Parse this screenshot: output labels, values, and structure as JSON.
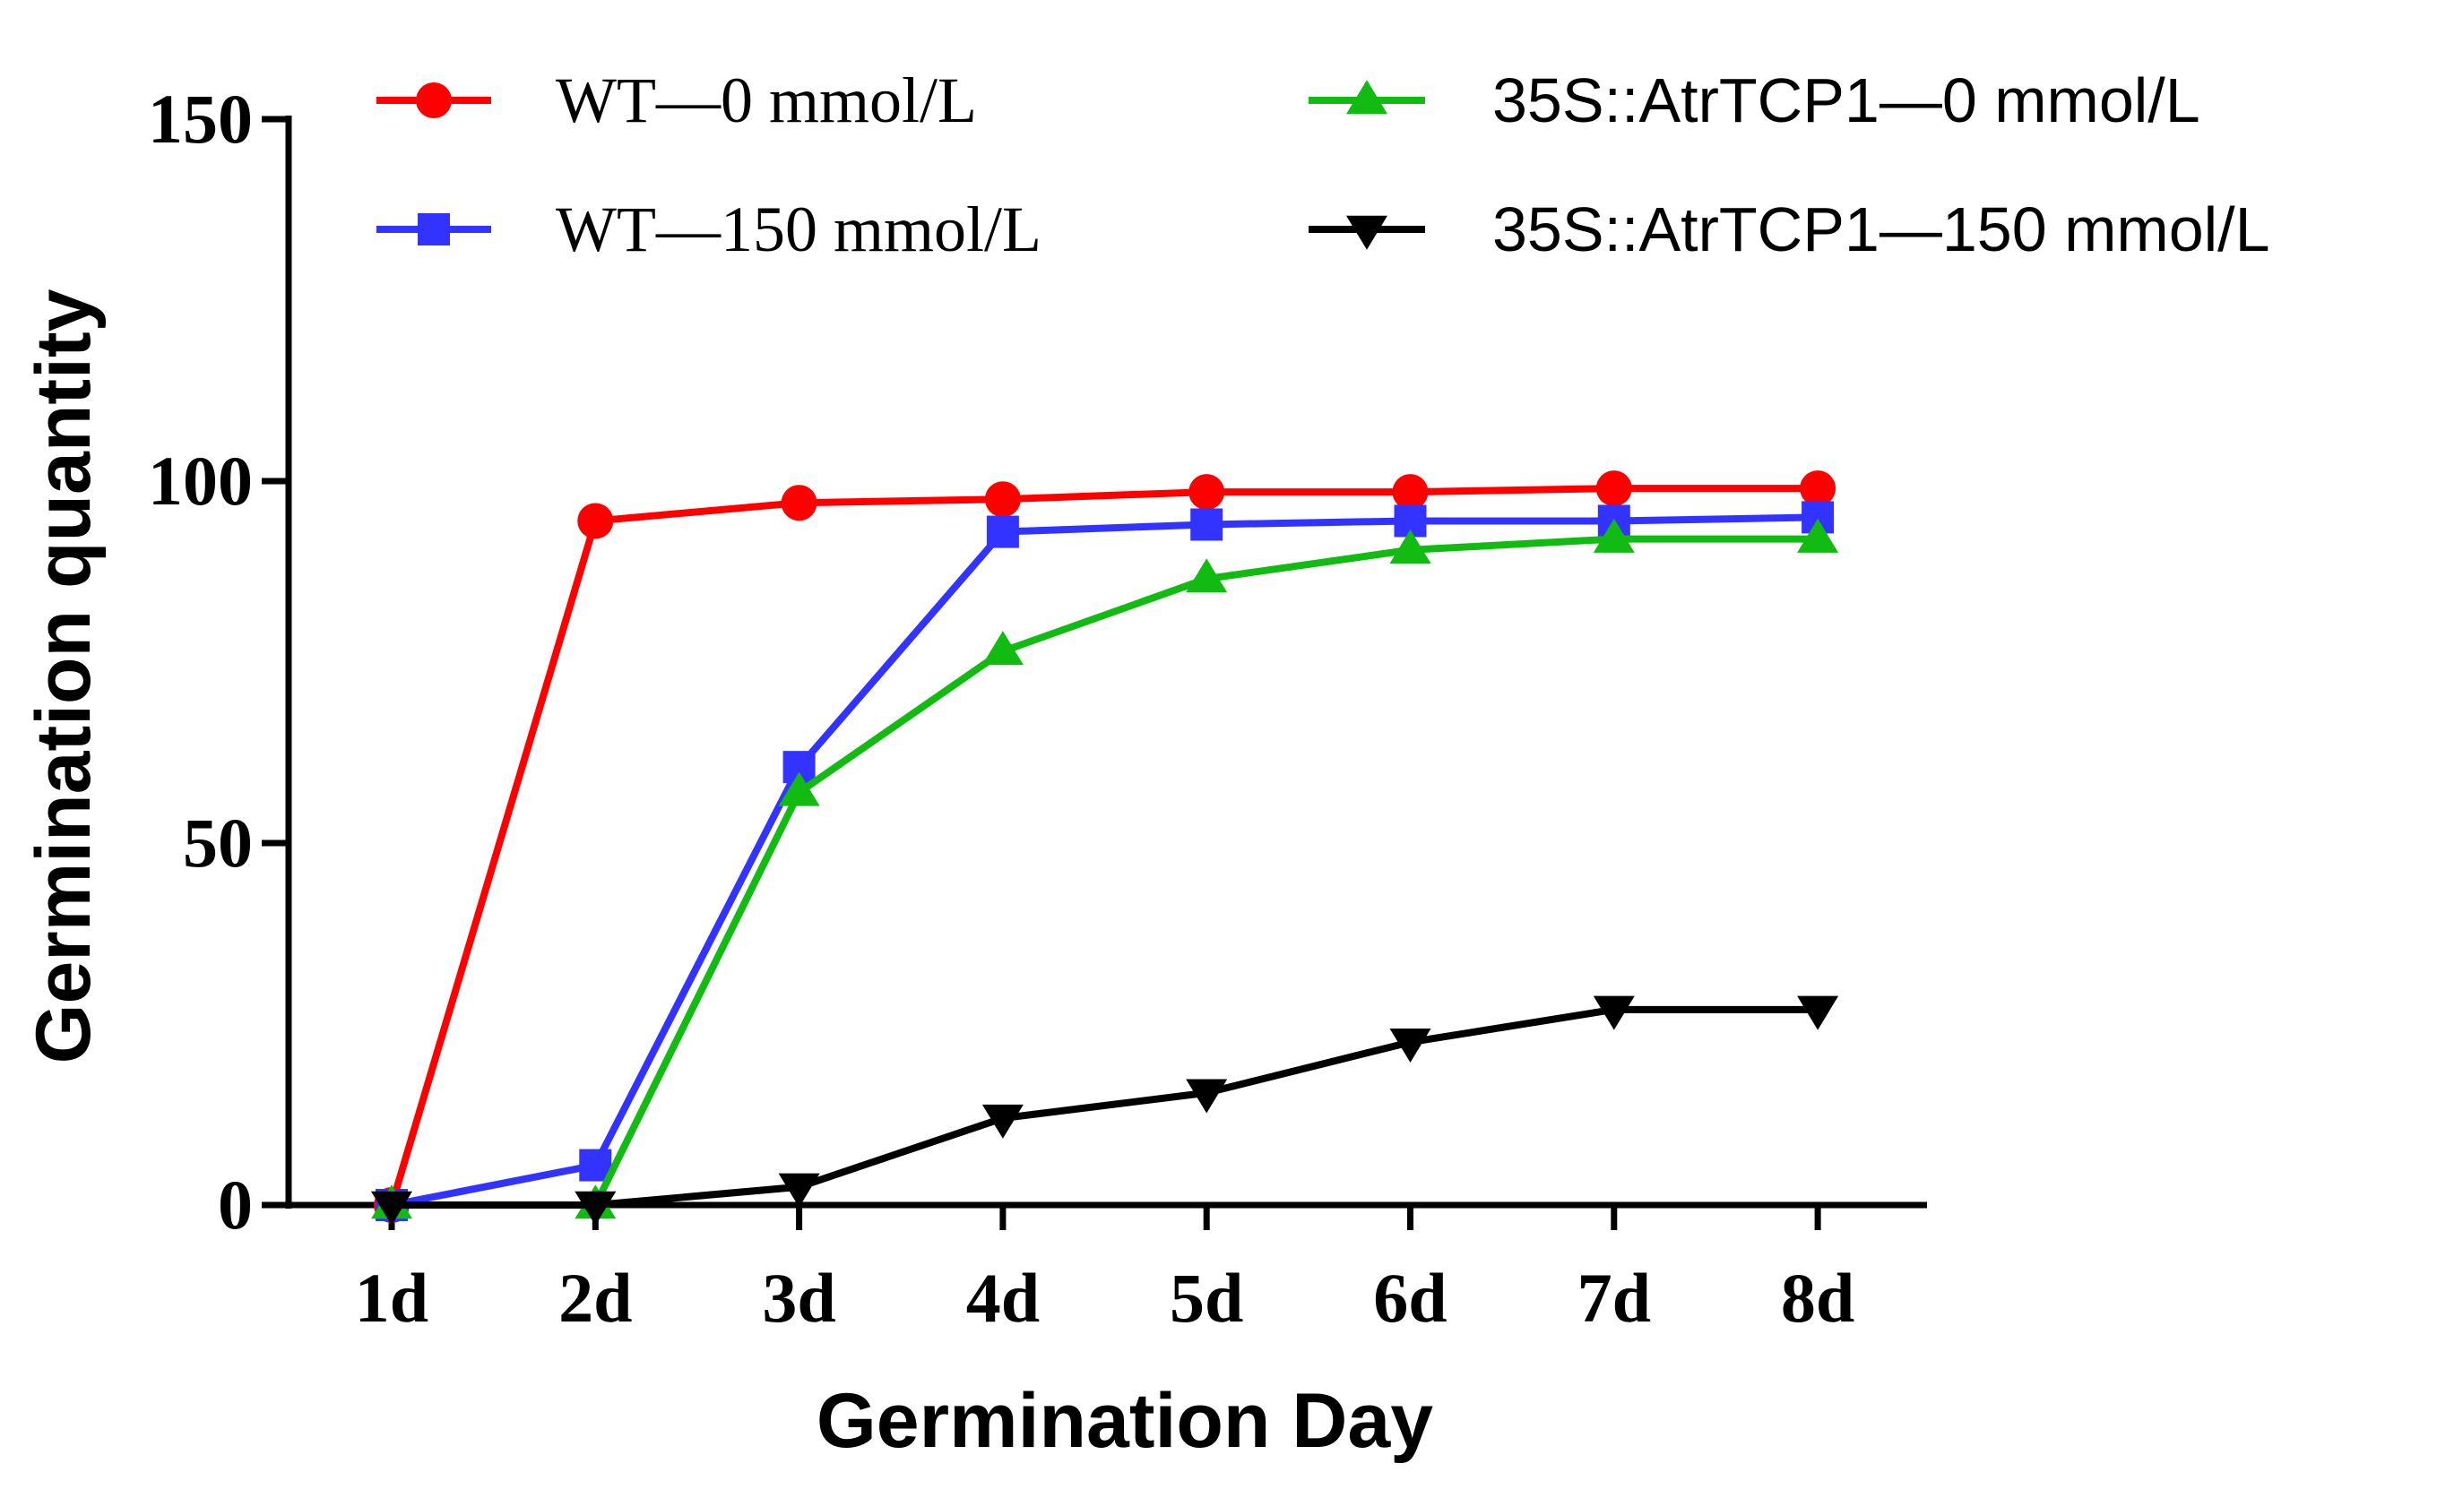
{
  "chart_data": {
    "type": "line",
    "title": "",
    "xlabel": "Germination Day",
    "ylabel": "Germination quantity",
    "categories": [
      "1d",
      "2d",
      "3d",
      "4d",
      "5d",
      "6d",
      "7d",
      "8d"
    ],
    "ylim": [
      0,
      150
    ],
    "yticks": [
      0,
      50,
      100,
      150
    ],
    "grid": false,
    "legend_position": "top",
    "series": [
      {
        "name": "WT—0  mmol/L",
        "color": "#ff0000",
        "marker": "circle",
        "values": [
          0,
          94.5,
          97,
          97.5,
          98.5,
          98.5,
          99,
          99
        ]
      },
      {
        "name": "WT—150 mmol/L",
        "color": "#3333ff",
        "marker": "square",
        "values": [
          0,
          5.5,
          60.5,
          93,
          94,
          94.5,
          94.5,
          95
        ]
      },
      {
        "name": "35S::AtrTCP1—0 mmol/L",
        "color": "#11bb11",
        "marker": "triangle-up",
        "values": [
          0,
          0,
          57,
          76.5,
          86.5,
          90.5,
          92,
          92
        ]
      },
      {
        "name": "35S::AtrTCP1—150 mmol/L",
        "color": "#000000",
        "marker": "triangle-down",
        "values": [
          0,
          0,
          2.5,
          12,
          15.5,
          22.5,
          27,
          27
        ]
      }
    ]
  }
}
